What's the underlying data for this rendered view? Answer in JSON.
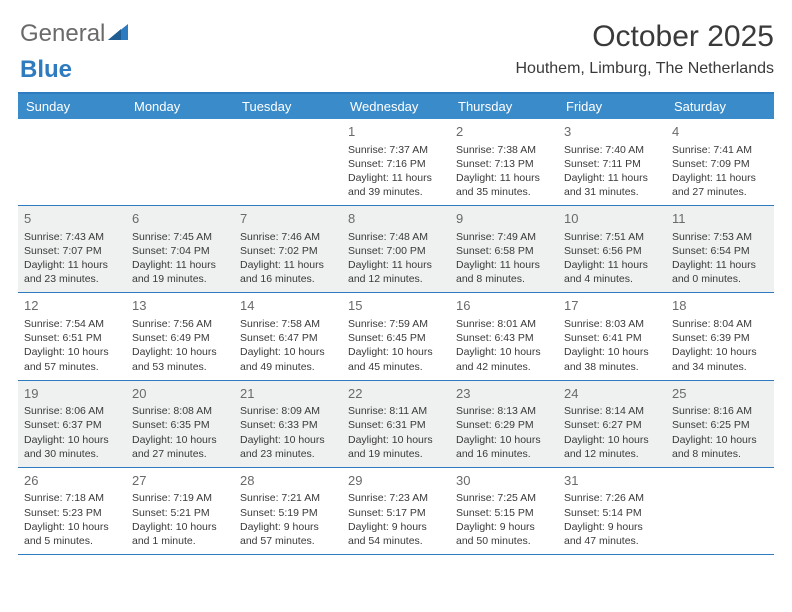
{
  "brand": {
    "text1": "General",
    "text2": "Blue"
  },
  "title": "October 2025",
  "location": "Houthem, Limburg, The Netherlands",
  "colors": {
    "header_bar": "#3a8bc9",
    "header_border": "#2f7bbf",
    "row_alt_bg": "#eff0f0",
    "text": "#3a3a3a",
    "daynum": "#6a6a6a"
  },
  "day_names": [
    "Sunday",
    "Monday",
    "Tuesday",
    "Wednesday",
    "Thursday",
    "Friday",
    "Saturday"
  ],
  "weeks": [
    [
      {
        "n": "",
        "sr": "",
        "ss": "",
        "dl": ""
      },
      {
        "n": "",
        "sr": "",
        "ss": "",
        "dl": ""
      },
      {
        "n": "",
        "sr": "",
        "ss": "",
        "dl": ""
      },
      {
        "n": "1",
        "sr": "Sunrise: 7:37 AM",
        "ss": "Sunset: 7:16 PM",
        "dl": "Daylight: 11 hours and 39 minutes."
      },
      {
        "n": "2",
        "sr": "Sunrise: 7:38 AM",
        "ss": "Sunset: 7:13 PM",
        "dl": "Daylight: 11 hours and 35 minutes."
      },
      {
        "n": "3",
        "sr": "Sunrise: 7:40 AM",
        "ss": "Sunset: 7:11 PM",
        "dl": "Daylight: 11 hours and 31 minutes."
      },
      {
        "n": "4",
        "sr": "Sunrise: 7:41 AM",
        "ss": "Sunset: 7:09 PM",
        "dl": "Daylight: 11 hours and 27 minutes."
      }
    ],
    [
      {
        "n": "5",
        "sr": "Sunrise: 7:43 AM",
        "ss": "Sunset: 7:07 PM",
        "dl": "Daylight: 11 hours and 23 minutes."
      },
      {
        "n": "6",
        "sr": "Sunrise: 7:45 AM",
        "ss": "Sunset: 7:04 PM",
        "dl": "Daylight: 11 hours and 19 minutes."
      },
      {
        "n": "7",
        "sr": "Sunrise: 7:46 AM",
        "ss": "Sunset: 7:02 PM",
        "dl": "Daylight: 11 hours and 16 minutes."
      },
      {
        "n": "8",
        "sr": "Sunrise: 7:48 AM",
        "ss": "Sunset: 7:00 PM",
        "dl": "Daylight: 11 hours and 12 minutes."
      },
      {
        "n": "9",
        "sr": "Sunrise: 7:49 AM",
        "ss": "Sunset: 6:58 PM",
        "dl": "Daylight: 11 hours and 8 minutes."
      },
      {
        "n": "10",
        "sr": "Sunrise: 7:51 AM",
        "ss": "Sunset: 6:56 PM",
        "dl": "Daylight: 11 hours and 4 minutes."
      },
      {
        "n": "11",
        "sr": "Sunrise: 7:53 AM",
        "ss": "Sunset: 6:54 PM",
        "dl": "Daylight: 11 hours and 0 minutes."
      }
    ],
    [
      {
        "n": "12",
        "sr": "Sunrise: 7:54 AM",
        "ss": "Sunset: 6:51 PM",
        "dl": "Daylight: 10 hours and 57 minutes."
      },
      {
        "n": "13",
        "sr": "Sunrise: 7:56 AM",
        "ss": "Sunset: 6:49 PM",
        "dl": "Daylight: 10 hours and 53 minutes."
      },
      {
        "n": "14",
        "sr": "Sunrise: 7:58 AM",
        "ss": "Sunset: 6:47 PM",
        "dl": "Daylight: 10 hours and 49 minutes."
      },
      {
        "n": "15",
        "sr": "Sunrise: 7:59 AM",
        "ss": "Sunset: 6:45 PM",
        "dl": "Daylight: 10 hours and 45 minutes."
      },
      {
        "n": "16",
        "sr": "Sunrise: 8:01 AM",
        "ss": "Sunset: 6:43 PM",
        "dl": "Daylight: 10 hours and 42 minutes."
      },
      {
        "n": "17",
        "sr": "Sunrise: 8:03 AM",
        "ss": "Sunset: 6:41 PM",
        "dl": "Daylight: 10 hours and 38 minutes."
      },
      {
        "n": "18",
        "sr": "Sunrise: 8:04 AM",
        "ss": "Sunset: 6:39 PM",
        "dl": "Daylight: 10 hours and 34 minutes."
      }
    ],
    [
      {
        "n": "19",
        "sr": "Sunrise: 8:06 AM",
        "ss": "Sunset: 6:37 PM",
        "dl": "Daylight: 10 hours and 30 minutes."
      },
      {
        "n": "20",
        "sr": "Sunrise: 8:08 AM",
        "ss": "Sunset: 6:35 PM",
        "dl": "Daylight: 10 hours and 27 minutes."
      },
      {
        "n": "21",
        "sr": "Sunrise: 8:09 AM",
        "ss": "Sunset: 6:33 PM",
        "dl": "Daylight: 10 hours and 23 minutes."
      },
      {
        "n": "22",
        "sr": "Sunrise: 8:11 AM",
        "ss": "Sunset: 6:31 PM",
        "dl": "Daylight: 10 hours and 19 minutes."
      },
      {
        "n": "23",
        "sr": "Sunrise: 8:13 AM",
        "ss": "Sunset: 6:29 PM",
        "dl": "Daylight: 10 hours and 16 minutes."
      },
      {
        "n": "24",
        "sr": "Sunrise: 8:14 AM",
        "ss": "Sunset: 6:27 PM",
        "dl": "Daylight: 10 hours and 12 minutes."
      },
      {
        "n": "25",
        "sr": "Sunrise: 8:16 AM",
        "ss": "Sunset: 6:25 PM",
        "dl": "Daylight: 10 hours and 8 minutes."
      }
    ],
    [
      {
        "n": "26",
        "sr": "Sunrise: 7:18 AM",
        "ss": "Sunset: 5:23 PM",
        "dl": "Daylight: 10 hours and 5 minutes."
      },
      {
        "n": "27",
        "sr": "Sunrise: 7:19 AM",
        "ss": "Sunset: 5:21 PM",
        "dl": "Daylight: 10 hours and 1 minute."
      },
      {
        "n": "28",
        "sr": "Sunrise: 7:21 AM",
        "ss": "Sunset: 5:19 PM",
        "dl": "Daylight: 9 hours and 57 minutes."
      },
      {
        "n": "29",
        "sr": "Sunrise: 7:23 AM",
        "ss": "Sunset: 5:17 PM",
        "dl": "Daylight: 9 hours and 54 minutes."
      },
      {
        "n": "30",
        "sr": "Sunrise: 7:25 AM",
        "ss": "Sunset: 5:15 PM",
        "dl": "Daylight: 9 hours and 50 minutes."
      },
      {
        "n": "31",
        "sr": "Sunrise: 7:26 AM",
        "ss": "Sunset: 5:14 PM",
        "dl": "Daylight: 9 hours and 47 minutes."
      },
      {
        "n": "",
        "sr": "",
        "ss": "",
        "dl": ""
      }
    ]
  ]
}
